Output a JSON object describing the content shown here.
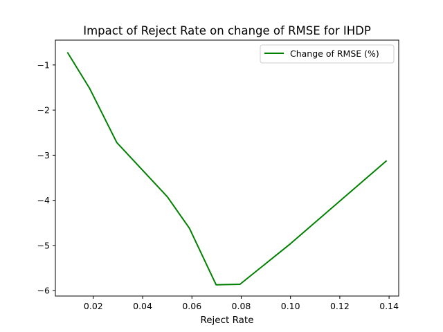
{
  "chart_data": {
    "type": "line",
    "title": "Impact of Reject Rate on change of RMSE for IHDP",
    "xlabel": "Reject Rate",
    "ylabel": "",
    "xlim": [
      0.0046,
      0.1439
    ],
    "ylim": [
      -6.12,
      -0.45
    ],
    "xticks": [
      0.02,
      0.04,
      0.06,
      0.08,
      0.1,
      0.12,
      0.14
    ],
    "xtick_labels": [
      "0.02",
      "0.04",
      "0.06",
      "0.08",
      "0.10",
      "0.12",
      "0.14"
    ],
    "yticks": [
      -1,
      -2,
      -3,
      -4,
      -5,
      -6
    ],
    "ytick_labels": [
      "−1",
      "−2",
      "−3",
      "−4",
      "−5",
      "−6"
    ],
    "legend_position": "top-right",
    "grid": false,
    "series": [
      {
        "name": "Change of RMSE (%)",
        "color": "#008000",
        "x": [
          0.0095,
          0.0185,
          0.0295,
          0.05,
          0.059,
          0.0698,
          0.0795,
          0.1,
          0.139
        ],
        "y": [
          -0.72,
          -1.52,
          -2.72,
          -3.92,
          -4.62,
          -5.87,
          -5.86,
          -4.96,
          -3.12
        ]
      }
    ]
  }
}
